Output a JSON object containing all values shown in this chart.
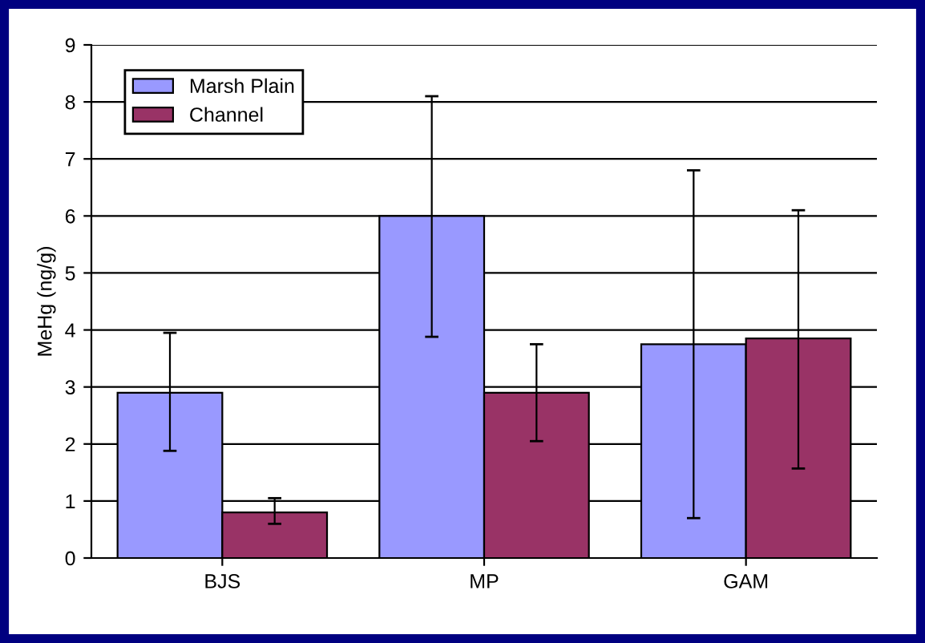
{
  "chart_data": {
    "type": "bar",
    "ylabel": "MeHg (ng/g)",
    "categories": [
      "BJS",
      "MP",
      "GAM"
    ],
    "series": [
      {
        "name": "Marsh Plain",
        "color": "#9999ff",
        "values": [
          2.9,
          6.0,
          3.75
        ],
        "errors": [
          [
            1.88,
            3.95
          ],
          [
            3.88,
            8.1
          ],
          [
            0.7,
            6.8
          ]
        ]
      },
      {
        "name": "Channel",
        "color": "#993366",
        "values": [
          0.8,
          2.9,
          3.85
        ],
        "errors": [
          [
            0.6,
            1.05
          ],
          [
            2.05,
            3.75
          ],
          [
            1.57,
            6.1
          ]
        ]
      }
    ],
    "ylim": [
      0,
      9
    ],
    "yticks": [
      0,
      1,
      2,
      3,
      4,
      5,
      6,
      7,
      8,
      9
    ],
    "grid": "y",
    "legend": "top left"
  }
}
